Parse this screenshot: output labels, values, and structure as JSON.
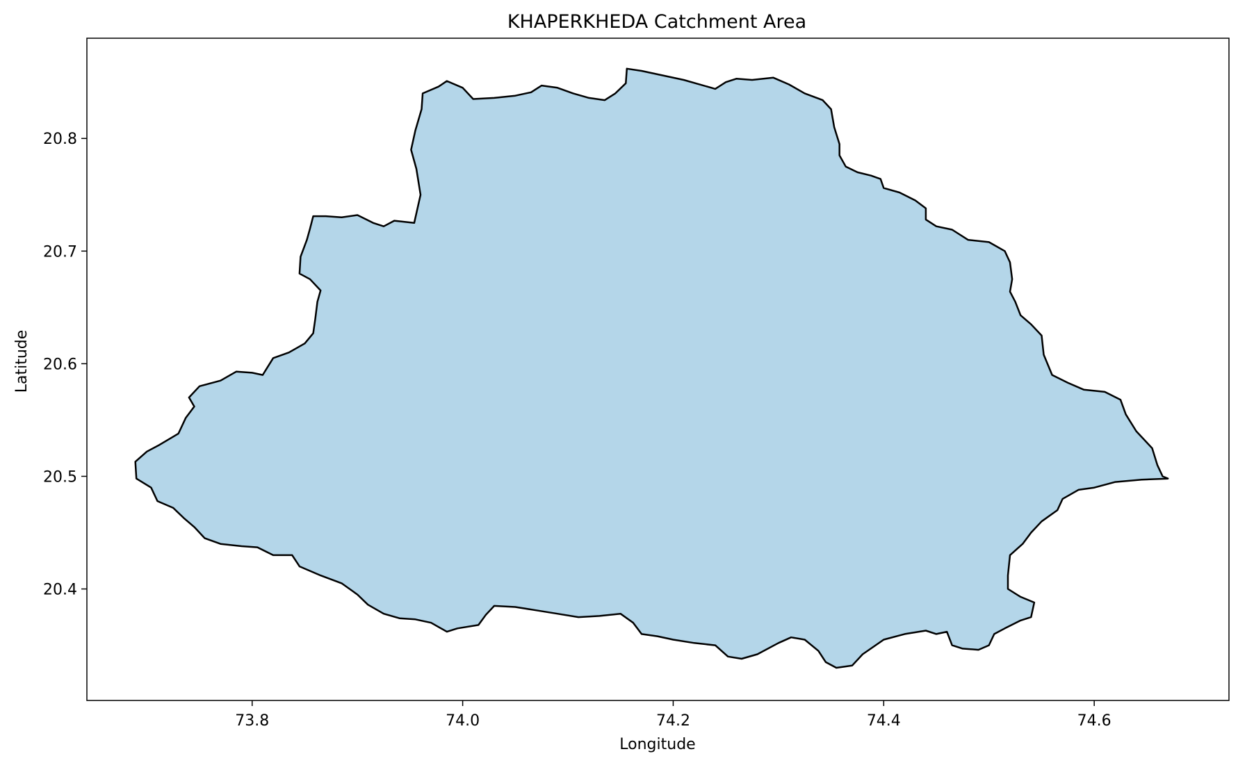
{
  "chart_data": {
    "type": "area",
    "title": "KHAPERKHEDA Catchment Area",
    "xlabel": "Longitude",
    "ylabel": "Latitude",
    "xlim": [
      73.643,
      74.728
    ],
    "ylim": [
      20.301,
      20.889
    ],
    "xticks": [
      73.8,
      74.0,
      74.2,
      74.4,
      74.6
    ],
    "xtick_labels": [
      "73.8",
      "74.0",
      "74.2",
      "74.4",
      "74.6"
    ],
    "yticks": [
      20.4,
      20.5,
      20.6,
      20.7,
      20.8
    ],
    "ytick_labels": [
      "20.4",
      "20.5",
      "20.6",
      "20.7",
      "20.8"
    ],
    "grid": false,
    "fill_color": "#b4d6e9",
    "edge_color": "#000000",
    "boundary": [
      [
        73.954,
        20.725
      ],
      [
        73.96,
        20.75
      ],
      [
        73.956,
        20.773
      ],
      [
        73.951,
        20.79
      ],
      [
        73.955,
        20.807
      ],
      [
        73.961,
        20.826
      ],
      [
        73.962,
        20.84
      ],
      [
        73.977,
        20.846
      ],
      [
        73.985,
        20.851
      ],
      [
        74.0,
        20.845
      ],
      [
        74.01,
        20.835
      ],
      [
        74.03,
        20.836
      ],
      [
        74.05,
        20.838
      ],
      [
        74.065,
        20.841
      ],
      [
        74.075,
        20.847
      ],
      [
        74.09,
        20.845
      ],
      [
        74.105,
        20.84
      ],
      [
        74.12,
        20.836
      ],
      [
        74.135,
        20.834
      ],
      [
        74.145,
        20.84
      ],
      [
        74.155,
        20.849
      ],
      [
        74.156,
        20.862
      ],
      [
        74.17,
        20.86
      ],
      [
        74.19,
        20.856
      ],
      [
        74.21,
        20.852
      ],
      [
        74.24,
        20.844
      ],
      [
        74.25,
        20.85
      ],
      [
        74.26,
        20.853
      ],
      [
        74.275,
        20.852
      ],
      [
        74.295,
        20.854
      ],
      [
        74.31,
        20.848
      ],
      [
        74.325,
        20.84
      ],
      [
        74.342,
        20.834
      ],
      [
        74.35,
        20.826
      ],
      [
        74.353,
        20.81
      ],
      [
        74.358,
        20.795
      ],
      [
        74.358,
        20.785
      ],
      [
        74.364,
        20.775
      ],
      [
        74.375,
        20.77
      ],
      [
        74.388,
        20.767
      ],
      [
        74.397,
        20.764
      ],
      [
        74.4,
        20.756
      ],
      [
        74.415,
        20.752
      ],
      [
        74.43,
        20.745
      ],
      [
        74.44,
        20.738
      ],
      [
        74.44,
        20.728
      ],
      [
        74.45,
        20.722
      ],
      [
        74.465,
        20.719
      ],
      [
        74.48,
        20.71
      ],
      [
        74.5,
        20.708
      ],
      [
        74.515,
        20.7
      ],
      [
        74.52,
        20.69
      ],
      [
        74.522,
        20.675
      ],
      [
        74.52,
        20.664
      ],
      [
        74.525,
        20.655
      ],
      [
        74.53,
        20.643
      ],
      [
        74.54,
        20.635
      ],
      [
        74.55,
        20.625
      ],
      [
        74.552,
        20.608
      ],
      [
        74.56,
        20.59
      ],
      [
        74.575,
        20.583
      ],
      [
        74.59,
        20.577
      ],
      [
        74.61,
        20.575
      ],
      [
        74.625,
        20.568
      ],
      [
        74.63,
        20.555
      ],
      [
        74.64,
        20.54
      ],
      [
        74.655,
        20.525
      ],
      [
        74.66,
        20.51
      ],
      [
        74.665,
        20.5
      ],
      [
        74.67,
        20.498
      ],
      [
        74.645,
        20.497
      ],
      [
        74.62,
        20.495
      ],
      [
        74.6,
        20.49
      ],
      [
        74.585,
        20.488
      ],
      [
        74.57,
        20.48
      ],
      [
        74.565,
        20.47
      ],
      [
        74.55,
        20.46
      ],
      [
        74.54,
        20.45
      ],
      [
        74.532,
        20.44
      ],
      [
        74.52,
        20.43
      ],
      [
        74.518,
        20.412
      ],
      [
        74.518,
        20.4
      ],
      [
        74.53,
        20.393
      ],
      [
        74.543,
        20.388
      ],
      [
        74.54,
        20.375
      ],
      [
        74.53,
        20.372
      ],
      [
        74.515,
        20.365
      ],
      [
        74.505,
        20.36
      ],
      [
        74.5,
        20.35
      ],
      [
        74.49,
        20.346
      ],
      [
        74.475,
        20.347
      ],
      [
        74.465,
        20.35
      ],
      [
        74.46,
        20.362
      ],
      [
        74.45,
        20.36
      ],
      [
        74.44,
        20.363
      ],
      [
        74.42,
        20.36
      ],
      [
        74.4,
        20.355
      ],
      [
        74.38,
        20.342
      ],
      [
        74.37,
        20.332
      ],
      [
        74.355,
        20.33
      ],
      [
        74.345,
        20.335
      ],
      [
        74.338,
        20.345
      ],
      [
        74.325,
        20.355
      ],
      [
        74.312,
        20.357
      ],
      [
        74.3,
        20.352
      ],
      [
        74.28,
        20.342
      ],
      [
        74.265,
        20.338
      ],
      [
        74.252,
        20.34
      ],
      [
        74.24,
        20.35
      ],
      [
        74.22,
        20.352
      ],
      [
        74.2,
        20.355
      ],
      [
        74.185,
        20.358
      ],
      [
        74.17,
        20.36
      ],
      [
        74.162,
        20.37
      ],
      [
        74.15,
        20.378
      ],
      [
        74.13,
        20.376
      ],
      [
        74.11,
        20.375
      ],
      [
        74.09,
        20.378
      ],
      [
        74.07,
        20.381
      ],
      [
        74.05,
        20.384
      ],
      [
        74.03,
        20.385
      ],
      [
        74.022,
        20.377
      ],
      [
        74.015,
        20.368
      ],
      [
        73.995,
        20.365
      ],
      [
        73.985,
        20.362
      ],
      [
        73.97,
        20.37
      ],
      [
        73.955,
        20.373
      ],
      [
        73.94,
        20.374
      ],
      [
        73.925,
        20.378
      ],
      [
        73.91,
        20.386
      ],
      [
        73.9,
        20.395
      ],
      [
        73.885,
        20.405
      ],
      [
        73.865,
        20.412
      ],
      [
        73.845,
        20.42
      ],
      [
        73.838,
        20.43
      ],
      [
        73.82,
        20.43
      ],
      [
        73.805,
        20.437
      ],
      [
        73.79,
        20.438
      ],
      [
        73.77,
        20.44
      ],
      [
        73.755,
        20.445
      ],
      [
        73.745,
        20.455
      ],
      [
        73.735,
        20.463
      ],
      [
        73.725,
        20.472
      ],
      [
        73.71,
        20.478
      ],
      [
        73.704,
        20.49
      ],
      [
        73.69,
        20.498
      ],
      [
        73.689,
        20.513
      ],
      [
        73.7,
        20.522
      ],
      [
        73.712,
        20.528
      ],
      [
        73.73,
        20.538
      ],
      [
        73.737,
        20.552
      ],
      [
        73.745,
        20.562
      ],
      [
        73.74,
        20.57
      ],
      [
        73.75,
        20.58
      ],
      [
        73.77,
        20.585
      ],
      [
        73.785,
        20.593
      ],
      [
        73.8,
        20.592
      ],
      [
        73.81,
        20.59
      ],
      [
        73.82,
        20.605
      ],
      [
        73.835,
        20.61
      ],
      [
        73.85,
        20.618
      ],
      [
        73.858,
        20.627
      ],
      [
        73.86,
        20.64
      ],
      [
        73.862,
        20.655
      ],
      [
        73.865,
        20.665
      ],
      [
        73.855,
        20.675
      ],
      [
        73.845,
        20.68
      ],
      [
        73.846,
        20.695
      ],
      [
        73.852,
        20.71
      ],
      [
        73.855,
        20.72
      ],
      [
        73.858,
        20.731
      ],
      [
        73.87,
        20.731
      ],
      [
        73.885,
        20.73
      ],
      [
        73.9,
        20.732
      ],
      [
        73.915,
        20.725
      ],
      [
        73.925,
        20.722
      ],
      [
        73.935,
        20.727
      ],
      [
        73.954,
        20.725
      ]
    ]
  }
}
